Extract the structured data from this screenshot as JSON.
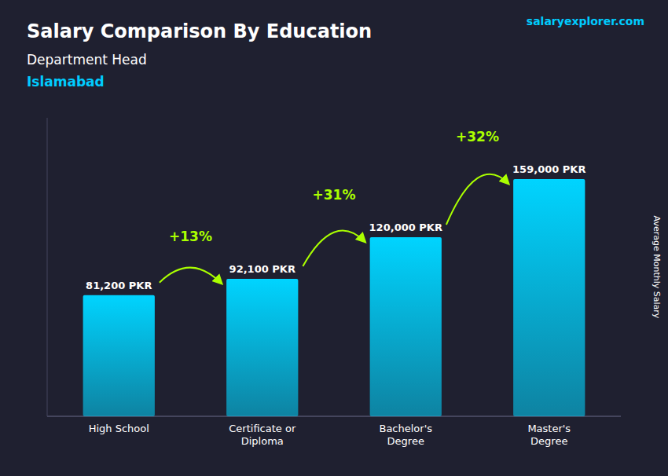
{
  "chart_data": {
    "type": "bar",
    "title": "Salary Comparison By Education",
    "subtitle": [
      "Department Head",
      "Islamabad"
    ],
    "ylabel": "Average Monthly Salary",
    "categories": [
      "High School",
      "Certificate or\nDiploma",
      "Bachelor's\nDegree",
      "Master's\nDegree"
    ],
    "values": [
      81200,
      92100,
      120000,
      159000
    ],
    "value_labels": [
      "81,200 PKR",
      "92,100 PKR",
      "120,000 PKR",
      "159,000 PKR"
    ],
    "data_labels": true,
    "color": "#00d4ff",
    "ylim": [
      0,
      200000
    ],
    "tick_labels": "x",
    "annotations": [
      {
        "text": "+13%",
        "color": "#aaff00"
      },
      {
        "text": "+31%",
        "color": "#aaff00"
      },
      {
        "text": "+32%",
        "color": "#aaff00"
      },
      {
        "text": "salaryexplorer.com"
      }
    ]
  }
}
